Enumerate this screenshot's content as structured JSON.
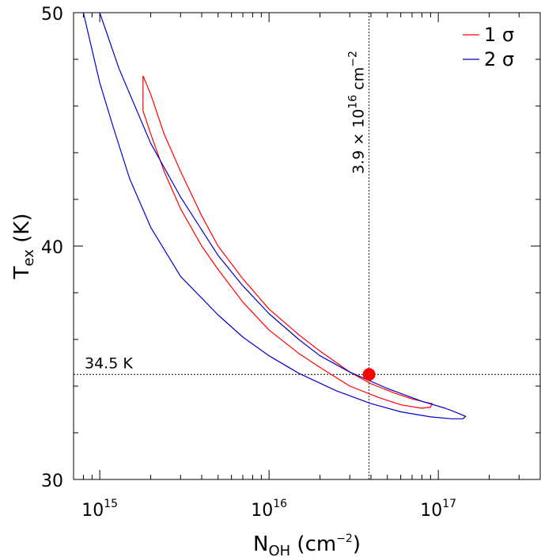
{
  "chart_data": {
    "type": "contour",
    "x_axis": {
      "label_main": "N",
      "label_sub": "OH",
      "label_unit_pre": " (cm",
      "label_unit_sup": "−2",
      "label_unit_post": ")",
      "scale": "log",
      "lim": [
        700000000000000.0,
        4e+17
      ],
      "ticks": [
        {
          "value": 1000000000000000.0,
          "base": "10",
          "exp": "15"
        },
        {
          "value": 1e+16,
          "base": "10",
          "exp": "16"
        },
        {
          "value": 1e+17,
          "base": "10",
          "exp": "17"
        }
      ]
    },
    "y_axis": {
      "label_main": "T",
      "label_sub": "ex",
      "label_unit": " (K)",
      "scale": "linear",
      "lim": [
        30,
        50
      ],
      "ticks": [
        30,
        40,
        50
      ]
    },
    "best_fit": {
      "x": 3.9e+16,
      "y": 34.5,
      "color": "#ff0000",
      "vline_label_pre": "3.9 × 10",
      "vline_label_sup": "16",
      "vline_label_post": " cm",
      "vline_label_sup2": "−2",
      "hline_label": "34.5 K"
    },
    "series": [
      {
        "name": "1 σ",
        "color": "#ff0000",
        "points": [
          [
            1800000000000000.0,
            47.3
          ],
          [
            2000000000000000.0,
            46.5
          ],
          [
            2400000000000000.0,
            44.8
          ],
          [
            3000000000000000.0,
            43.2
          ],
          [
            4000000000000000.0,
            41.3
          ],
          [
            5000000000000000.0,
            40.0
          ],
          [
            7000000000000000.0,
            38.6
          ],
          [
            1e+16,
            37.3
          ],
          [
            1.5e+16,
            36.2
          ],
          [
            2e+16,
            35.5
          ],
          [
            3e+16,
            34.6
          ],
          [
            4e+16,
            34.1
          ],
          [
            5.5e+16,
            33.7
          ],
          [
            7e+16,
            33.45
          ],
          [
            8.5e+16,
            33.3
          ],
          [
            9.2e+16,
            33.25
          ],
          [
            9e+16,
            33.1
          ],
          [
            8e+16,
            33.05
          ],
          [
            6e+16,
            33.2
          ],
          [
            4.5e+16,
            33.5
          ],
          [
            3e+16,
            34.0
          ],
          [
            2e+16,
            34.8
          ],
          [
            1.5e+16,
            35.4
          ],
          [
            1e+16,
            36.4
          ],
          [
            7000000000000000.0,
            37.6
          ],
          [
            5000000000000000.0,
            39.0
          ],
          [
            4000000000000000.0,
            40.0
          ],
          [
            3000000000000000.0,
            41.6
          ],
          [
            2400000000000000.0,
            43.2
          ],
          [
            2000000000000000.0,
            44.8
          ],
          [
            1800000000000000.0,
            45.8
          ],
          [
            1800000000000000.0,
            47.3
          ]
        ]
      },
      {
        "name": "2 σ",
        "color": "#0000cc",
        "points": [
          [
            1000000000000000.0,
            50.0
          ],
          [
            1300000000000000.0,
            47.6
          ],
          [
            2000000000000000.0,
            44.4
          ],
          [
            3000000000000000.0,
            42.1
          ],
          [
            5000000000000000.0,
            39.6
          ],
          [
            7000000000000000.0,
            38.3
          ],
          [
            1e+16,
            37.1
          ],
          [
            1.5e+16,
            36.0
          ],
          [
            2e+16,
            35.3
          ],
          [
            3e+16,
            34.6
          ],
          [
            5e+16,
            33.9
          ],
          [
            8e+16,
            33.35
          ],
          [
            1.1e+17,
            33.05
          ],
          [
            1.3e+17,
            32.85
          ],
          [
            1.45e+17,
            32.7
          ],
          [
            1.4e+17,
            32.6
          ],
          [
            1.2e+17,
            32.6
          ],
          [
            9e+16,
            32.68
          ],
          [
            6e+16,
            32.9
          ],
          [
            4e+16,
            33.25
          ],
          [
            2.5e+16,
            33.8
          ],
          [
            1.5e+16,
            34.55
          ],
          [
            1e+16,
            35.3
          ],
          [
            7000000000000000.0,
            36.1
          ],
          [
            5000000000000000.0,
            37.05
          ],
          [
            3000000000000000.0,
            38.7
          ],
          [
            2000000000000000.0,
            40.8
          ],
          [
            1500000000000000.0,
            42.9
          ],
          [
            1200000000000000.0,
            45.1
          ],
          [
            1000000000000000.0,
            47.0
          ],
          [
            800000000000000.0,
            50.0
          ]
        ]
      }
    ],
    "legend": {
      "position": "top-right",
      "entries": [
        {
          "label": "1 σ",
          "color": "#ff0000"
        },
        {
          "label": "2 σ",
          "color": "#0000cc"
        }
      ]
    },
    "grid": false
  }
}
